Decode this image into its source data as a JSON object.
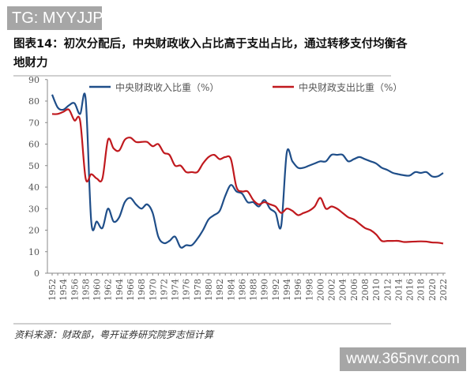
{
  "watermarks": {
    "top_left": "TG: MYYJJPP",
    "bottom_right": "www.365nvr.com"
  },
  "title": "图表14：初次分配后，中央财政收入占比高于支出占比，通过转移支付均衡各地财力",
  "source": "资料来源：财政部，粤开证券研究院罗志恒计算",
  "chart_data": {
    "type": "line",
    "title": "图表14：初次分配后，中央财政收入占比高于支出占比，通过转移支付均衡各地财力",
    "xlabel": "",
    "ylabel": "",
    "ylim": [
      0,
      90
    ],
    "yticks": [
      "0",
      "10",
      "20",
      "30",
      "40",
      "50",
      "60",
      "70",
      "80",
      "90"
    ],
    "xticks": [
      "1952",
      "1954",
      "1956",
      "1958",
      "1960",
      "1962",
      "1964",
      "1966",
      "1968",
      "1970",
      "1972",
      "1974",
      "1976",
      "1978",
      "1980",
      "1982",
      "1984",
      "1986",
      "1988",
      "1990",
      "1992",
      "1994",
      "1996",
      "1998",
      "2000",
      "2002",
      "2004",
      "2006",
      "2008",
      "2010",
      "2012",
      "2014",
      "2016",
      "2018",
      "2020",
      "2022"
    ],
    "x_start": 1952,
    "x_end": 2022,
    "grid": false,
    "legend": "top",
    "series": [
      {
        "name": "中央财政收入比重（%）",
        "color": "#1f4e89",
        "values": [
          83,
          77,
          76,
          78,
          79,
          74,
          81,
          24,
          24,
          21,
          30,
          24,
          26,
          33,
          35,
          32,
          30,
          32,
          28,
          17,
          14,
          15,
          17,
          12,
          13,
          13,
          16,
          20,
          25,
          27,
          29,
          36,
          41,
          38,
          37,
          33,
          33,
          31,
          34,
          30,
          28,
          22,
          56,
          52,
          49,
          49,
          50,
          51,
          52,
          52,
          55,
          55,
          55,
          52,
          53,
          54,
          53,
          52,
          51,
          49,
          48,
          46.6,
          46,
          45.5,
          45.4,
          47,
          46.6,
          47,
          45,
          45,
          46.6
        ]
      },
      {
        "name": "中央财政支出比重（%）",
        "color": "#c0191e",
        "values": [
          74,
          74,
          75,
          76,
          71,
          71,
          44,
          46,
          44,
          44,
          62,
          58,
          57,
          62,
          63,
          61,
          61,
          61,
          59,
          60,
          56,
          55,
          50,
          50,
          47,
          47,
          47,
          51,
          54,
          55,
          53,
          54,
          53,
          40,
          38,
          38,
          34,
          32,
          33,
          32,
          31,
          28,
          30,
          29,
          27,
          28,
          29,
          31,
          35,
          30,
          31,
          30,
          28,
          26,
          25,
          23,
          21,
          20,
          18,
          15,
          15,
          15,
          15,
          14.5,
          14.6,
          14.7,
          14.8,
          14.7,
          14.3,
          14.2,
          13.8
        ]
      }
    ]
  }
}
